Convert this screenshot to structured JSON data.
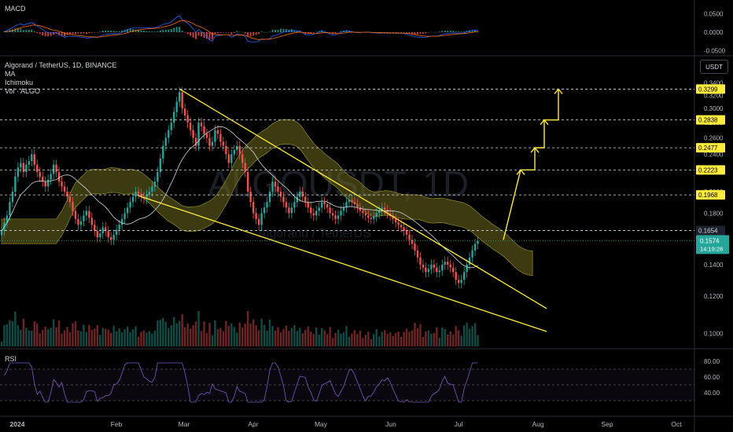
{
  "header": {
    "symbol_line": "Algorand / TetherUS, 1D, BINANCE",
    "indicators": [
      "MA",
      "Ichimoku",
      "Vol · ALGO"
    ],
    "macd_label": "MACD",
    "rsi_label": "RSI",
    "currency": "USDT",
    "watermark": "ALGOUSDT, 1D",
    "watermark_sub": "Algorand / TetherUS"
  },
  "colors": {
    "up": "#26a69a",
    "down": "#ef5350",
    "cloud": "#6b6a1f",
    "trendline": "#ffeb3b",
    "ma": "#d1d4dc",
    "rsi": "#7e57c2",
    "macd": "#2962ff",
    "signal": "#ff6d00",
    "price_label": "#26a69a",
    "level_label": "#ffeb3b"
  },
  "chart_data": [
    {
      "type": "line",
      "title": "MACD",
      "y_ticks": [
        "0.0500",
        "0.0000",
        "-0.0500"
      ],
      "ylim": [
        -0.06,
        0.06
      ]
    },
    {
      "type": "candlestick",
      "title": "Algorand / TetherUS, 1D, BINANCE",
      "ylabel": "USDT",
      "y_scale": "log",
      "ylim": [
        0.095,
        0.35
      ],
      "y_ticks": [
        "0.3400",
        "0.3200",
        "0.3000",
        "0.2800",
        "0.2600",
        "0.2400",
        "0.2200",
        "0.2000",
        "0.1800",
        "0.1600",
        "0.1400",
        "0.1200",
        "0.1000"
      ],
      "x_ticks": [
        "2024",
        "Feb",
        "Mar",
        "Apr",
        "May",
        "Jun",
        "Jul",
        "Aug",
        "Sep",
        "Oct"
      ],
      "levels": [
        {
          "value": 0.3299,
          "label": "0.3299"
        },
        {
          "value": 0.2838,
          "label": "0.2838"
        },
        {
          "value": 0.2477,
          "label": "0.2477"
        },
        {
          "value": 0.2223,
          "label": "0.2223"
        },
        {
          "value": 0.1968,
          "label": "0.1968"
        },
        {
          "value": 0.1654,
          "label": "0.1654"
        }
      ],
      "last_price": {
        "value": 0.1574,
        "label": "0.1574",
        "countdown": "14:19:28"
      },
      "closes": [
        0.165,
        0.172,
        0.178,
        0.19,
        0.2,
        0.215,
        0.225,
        0.23,
        0.22,
        0.228,
        0.232,
        0.24,
        0.228,
        0.22,
        0.215,
        0.21,
        0.205,
        0.212,
        0.218,
        0.228,
        0.22,
        0.21,
        0.205,
        0.2,
        0.195,
        0.19,
        0.182,
        0.175,
        0.17,
        0.173,
        0.178,
        0.182,
        0.176,
        0.17,
        0.165,
        0.16,
        0.163,
        0.168,
        0.165,
        0.16,
        0.158,
        0.162,
        0.166,
        0.17,
        0.175,
        0.18,
        0.185,
        0.19,
        0.195,
        0.2,
        0.198,
        0.195,
        0.193,
        0.197,
        0.2,
        0.205,
        0.21,
        0.22,
        0.235,
        0.25,
        0.26,
        0.27,
        0.28,
        0.295,
        0.31,
        0.325,
        0.3,
        0.29,
        0.28,
        0.27,
        0.26,
        0.25,
        0.28,
        0.275,
        0.265,
        0.26,
        0.25,
        0.255,
        0.27,
        0.265,
        0.255,
        0.25,
        0.24,
        0.23,
        0.24,
        0.245,
        0.25,
        0.24,
        0.23,
        0.22,
        0.2,
        0.19,
        0.18,
        0.175,
        0.17,
        0.18,
        0.185,
        0.19,
        0.2,
        0.21,
        0.205,
        0.2,
        0.195,
        0.19,
        0.185,
        0.18,
        0.185,
        0.19,
        0.195,
        0.2,
        0.195,
        0.19,
        0.185,
        0.18,
        0.178,
        0.182,
        0.185,
        0.19,
        0.188,
        0.185,
        0.18,
        0.178,
        0.175,
        0.178,
        0.182,
        0.185,
        0.19,
        0.192,
        0.19,
        0.188,
        0.185,
        0.182,
        0.18,
        0.178,
        0.176,
        0.175,
        0.177,
        0.18,
        0.182,
        0.185,
        0.183,
        0.18,
        0.178,
        0.175,
        0.172,
        0.17,
        0.168,
        0.165,
        0.162,
        0.158,
        0.155,
        0.15,
        0.145,
        0.14,
        0.138,
        0.135,
        0.137,
        0.14,
        0.138,
        0.135,
        0.136,
        0.14,
        0.142,
        0.14,
        0.138,
        0.135,
        0.13,
        0.128,
        0.13,
        0.135,
        0.14,
        0.145,
        0.15,
        0.155,
        0.157
      ]
    },
    {
      "type": "line",
      "title": "RSI",
      "y_ticks": [
        "80.00",
        "60.00",
        "40.00"
      ],
      "ylim": [
        20,
        90
      ]
    }
  ]
}
